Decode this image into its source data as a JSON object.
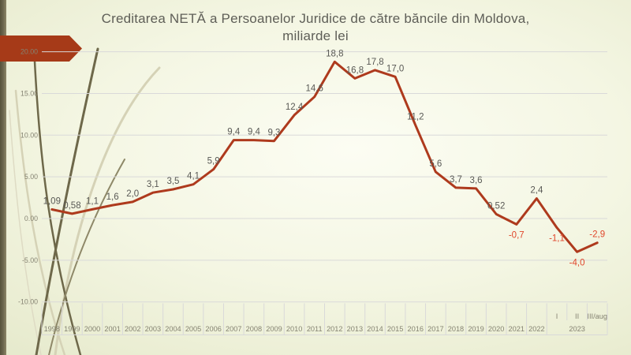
{
  "slide": {
    "title_line1": "Creditarea NETĂ a Persoanelor Juridice de către băncile din Moldova,",
    "title_line2": "miliarde lei"
  },
  "colors": {
    "line": "#ae3a1d",
    "label_positive": "#595955",
    "label_negative": "#e0462b",
    "gridline": "#d9d9d9",
    "axis_text": "#858372",
    "banner": "#a63a18",
    "left_bar_dark": "#55513a",
    "left_bar_light": "#8d8768"
  },
  "chart_data": {
    "type": "line",
    "title": "Creditarea NETĂ a Persoanelor Juridice de către băncile din Moldova, miliarde lei",
    "categories": [
      "1998",
      "1999",
      "2000",
      "2001",
      "2002",
      "2003",
      "2004",
      "2005",
      "2006",
      "2007",
      "2008",
      "2009",
      "2010",
      "2011",
      "2012",
      "2013",
      "2014",
      "2015",
      "2016",
      "2017",
      "2018",
      "2019",
      "2020",
      "2021",
      "2022",
      "I",
      "II",
      "III/aug"
    ],
    "group_label": "2023",
    "group_start_index": 25,
    "values": [
      1.09,
      0.58,
      1.1,
      1.6,
      2.0,
      3.1,
      3.5,
      4.1,
      5.9,
      9.4,
      9.4,
      9.3,
      12.4,
      14.6,
      18.8,
      16.8,
      17.8,
      17.0,
      11.2,
      5.6,
      3.7,
      3.6,
      0.52,
      -0.7,
      2.4,
      -1.1,
      -4.0,
      -2.9
    ],
    "labels": [
      "1,09",
      "0,58",
      "1,1",
      "1,6",
      "2,0",
      "3,1",
      "3,5",
      "4,1",
      "5,9",
      "9,4",
      "9,4",
      "9,3",
      "12,4",
      "14,6",
      "18,8",
      "16,8",
      "17,8",
      "17,0",
      "11,2",
      "5,6",
      "3,7",
      "3,6",
      "0,52",
      "-0,7",
      "2,4",
      "-1,1",
      "-4,0",
      "-2,9"
    ],
    "label_below_indices": [
      23,
      25,
      26
    ],
    "y_ticks": [
      "20.00",
      "15.00",
      "10.00",
      "5.00",
      "0.00",
      "-5.00",
      "-10.00"
    ],
    "y_tick_values": [
      20,
      15,
      10,
      5,
      0,
      -5,
      -10
    ],
    "ylim": [
      -10,
      20
    ],
    "grid": true,
    "legend": false,
    "xlabel": "",
    "ylabel": ""
  }
}
